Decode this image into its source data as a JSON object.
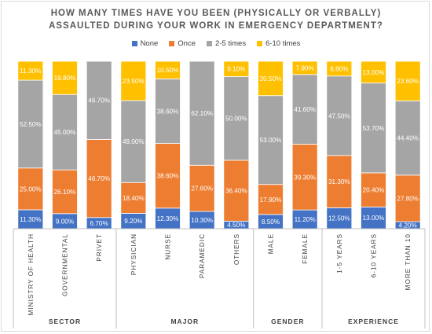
{
  "chart_data": {
    "type": "bar",
    "stacked": true,
    "normalized": true,
    "title_line1": "HOW MANY TIMES HAVE YOU BEEN (PHYSICALLY OR VERBALLY)",
    "title_line2": "ASSAULTED DURING YOUR WORK IN EMERGENCY DEPARTMENT?",
    "legend_position": "top",
    "categories": [
      "MINISTRY OF HEALTH",
      "GOVERNMENTAL",
      "PRIVET",
      "PHYSICIAN",
      "NURSE",
      "PARAMEDIC",
      "OTHERS",
      "MALE",
      "FEMALE",
      "1-5 YEARS",
      "6-10 YEARS",
      "MORE THAN 10"
    ],
    "groups": [
      {
        "name": "SECTOR",
        "count": 3
      },
      {
        "name": "MAJOR",
        "count": 4
      },
      {
        "name": "GENDER",
        "count": 2
      },
      {
        "name": "EXPERIENCE",
        "count": 3
      }
    ],
    "series": [
      {
        "name": "None",
        "color": "#4472C4",
        "values": [
          11.3,
          9.0,
          6.7,
          9.2,
          12.3,
          10.3,
          4.5,
          8.5,
          11.2,
          12.5,
          13.0,
          4.2
        ],
        "labels": [
          "11.30%",
          "9.00%",
          "6.70%",
          "9.20%",
          "12.30%",
          "10.30%",
          "4.50%",
          "8.50%",
          "11.20%",
          "12.50%",
          "13.00%",
          "4.20%"
        ]
      },
      {
        "name": "Once",
        "color": "#ED7D31",
        "values": [
          25.0,
          26.1,
          46.7,
          18.4,
          38.6,
          27.6,
          36.4,
          17.9,
          39.3,
          31.3,
          20.4,
          27.8
        ],
        "labels": [
          "25.00%",
          "26.10%",
          "46.70%",
          "18.40%",
          "38.60%",
          "27.60%",
          "36.40%",
          "17.90%",
          "39.30%",
          "31.30%",
          "20.40%",
          "27.80%"
        ]
      },
      {
        "name": "2-5 times",
        "color": "#A5A5A5",
        "values": [
          52.5,
          45.0,
          46.7,
          49.0,
          38.6,
          62.1,
          50.0,
          53.0,
          41.6,
          47.5,
          53.7,
          44.4
        ],
        "labels": [
          "52.50%",
          "45.00%",
          "46.70%",
          "49.00%",
          "38.60%",
          "62.10%",
          "50.00%",
          "53.00%",
          "41.60%",
          "47.50%",
          "53.70%",
          "44.40%"
        ]
      },
      {
        "name": "6-10 times",
        "color": "#FFC000",
        "values": [
          11.3,
          19.8,
          0,
          23.5,
          10.5,
          0,
          9.1,
          20.5,
          7.9,
          8.8,
          13.0,
          23.6
        ],
        "labels": [
          "11.30%",
          "19.80%",
          "",
          "23.50%",
          "10.50%",
          "",
          "9.10%",
          "20.50%",
          "7.90%",
          "8.80%",
          "13.00%",
          "23.60%"
        ]
      }
    ]
  }
}
